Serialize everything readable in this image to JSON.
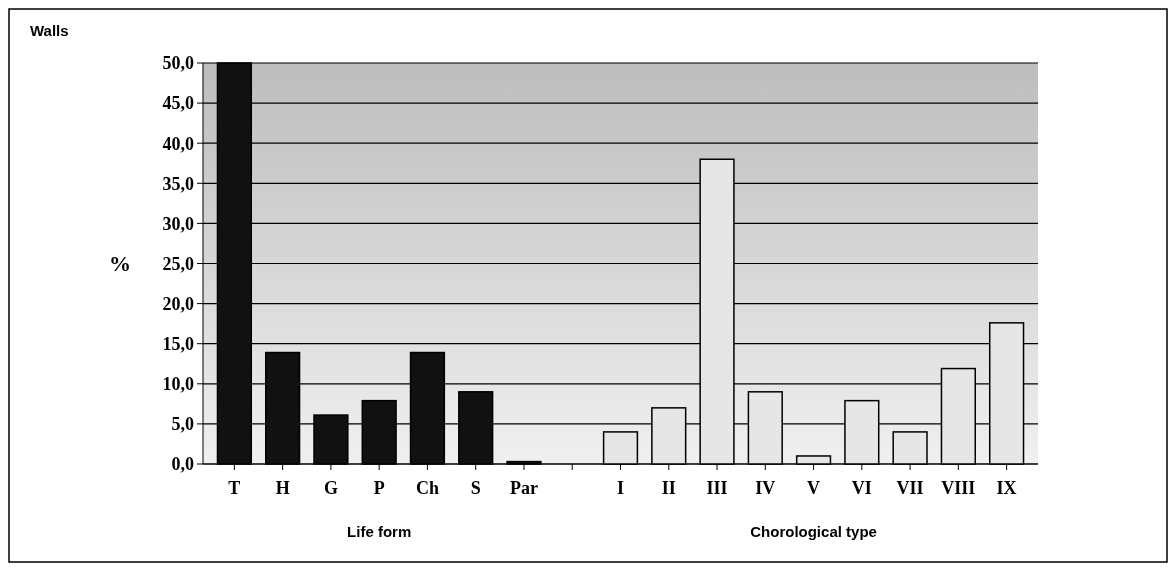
{
  "chart_data": {
    "type": "bar",
    "title": "Walls",
    "ylabel": "%",
    "categories": [
      "T",
      "H",
      "G",
      "P",
      "Ch",
      "S",
      "Par",
      null,
      "I",
      "II",
      "III",
      "IV",
      "V",
      "VI",
      "VII",
      "VIII",
      "IX"
    ],
    "series": [
      {
        "color": "#111111",
        "values": [
          50.0,
          13.9,
          6.1,
          7.9,
          13.9,
          9.0,
          0.3,
          null,
          null,
          null,
          null,
          null,
          null,
          null,
          null,
          null,
          null
        ]
      },
      {
        "color": "#e6e6e6",
        "values": [
          null,
          null,
          null,
          null,
          null,
          null,
          null,
          null,
          4.0,
          7.0,
          38.0,
          9.0,
          1.0,
          7.9,
          4.0,
          11.9,
          17.6
        ]
      }
    ],
    "ylim": [
      0,
      50
    ],
    "yticks": [
      {
        "value": 0,
        "label": "0,0"
      },
      {
        "value": 5,
        "label": "5,0"
      },
      {
        "value": 10,
        "label": "10,0"
      },
      {
        "value": 15,
        "label": "15,0"
      },
      {
        "value": 20,
        "label": "20,0"
      },
      {
        "value": 25,
        "label": "25,0"
      },
      {
        "value": 30,
        "label": "30,0"
      },
      {
        "value": 35,
        "label": "35,0"
      },
      {
        "value": 40,
        "label": "40,0"
      },
      {
        "value": 45,
        "label": "45,0"
      },
      {
        "value": 50,
        "label": "50,0"
      }
    ],
    "annotations": [
      "Life form",
      "Chorological type"
    ],
    "grid": "y"
  }
}
